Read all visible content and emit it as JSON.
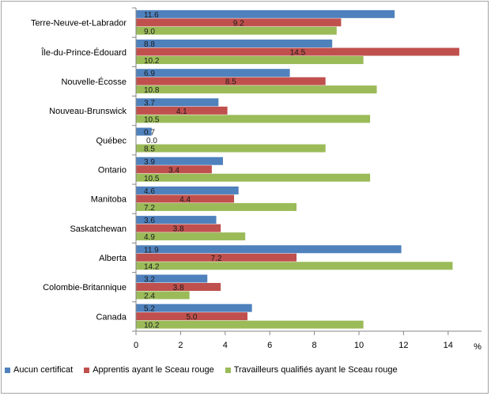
{
  "chart_data": {
    "type": "bar",
    "orientation": "horizontal",
    "categories": [
      "Terre-Neuve-et-Labrador",
      "Île-du-Prince-Édouard",
      "Nouvelle-Écosse",
      "Nouveau-Brunswick",
      "Québec",
      "Ontario",
      "Manitoba",
      "Saskatchewan",
      "Alberta",
      "Colombie-Britannique",
      "Canada"
    ],
    "series": [
      {
        "name": "Aucun certificat",
        "color": "#4f81bd",
        "values": [
          11.6,
          8.8,
          6.9,
          3.7,
          0.7,
          3.9,
          4.6,
          3.6,
          11.9,
          3.2,
          5.2
        ]
      },
      {
        "name": "Apprentis ayant le Sceau rouge",
        "color": "#c0504d",
        "values": [
          9.2,
          14.5,
          8.5,
          4.1,
          0.0,
          3.4,
          4.4,
          3.8,
          7.2,
          3.8,
          5.0
        ]
      },
      {
        "name": "Travailleurs qualifiés ayant le Sceau rouge",
        "color": "#9bbb59",
        "values": [
          9.0,
          10.2,
          10.8,
          10.5,
          8.5,
          10.5,
          7.2,
          4.9,
          14.2,
          2.4,
          10.2
        ]
      }
    ],
    "data_labels": [
      [
        "11.6",
        "8.8",
        "6.9",
        "3.7",
        "0.7",
        "3.9",
        "4.6",
        "3.6",
        "11.9",
        "3.2",
        "5.2"
      ],
      [
        "9.2",
        "14.5",
        "8.5",
        "4.1",
        "0.0",
        "3.4",
        "4.4",
        "3.8",
        "7.2",
        "3.8",
        "5.0"
      ],
      [
        "9.0",
        "10.2",
        "10.8",
        "10.5",
        "8.5",
        "10.5",
        "7.2",
        "4.9",
        "14.2",
        "2.4",
        "10.2"
      ]
    ],
    "x_ticks": [
      "0",
      "2",
      "4",
      "6",
      "8",
      "10",
      "12",
      "14"
    ],
    "xlim": [
      0,
      15.5
    ],
    "xlabel": "%",
    "title": "",
    "grid": false,
    "legend_position": "bottom"
  }
}
